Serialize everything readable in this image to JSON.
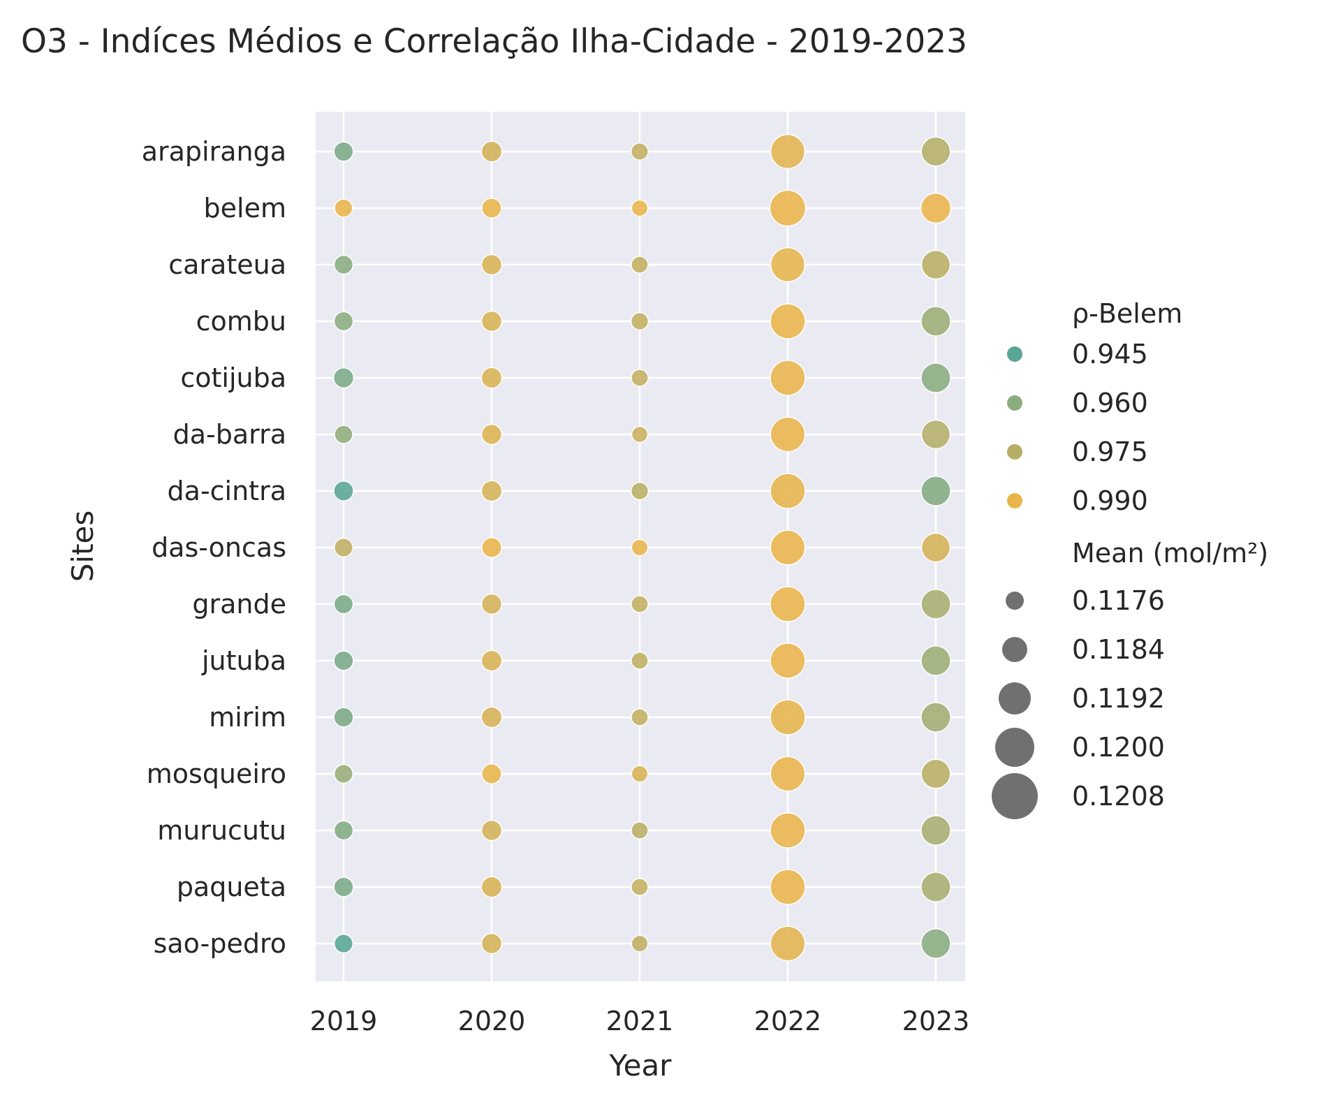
{
  "chart_data": {
    "type": "scatter",
    "title": "O3 - Indíces Médios e Correlação Ilha-Cidade - 2019-2023",
    "xlabel": "Year",
    "ylabel": "Sites",
    "x": [
      "2019",
      "2020",
      "2021",
      "2022",
      "2023"
    ],
    "sites": [
      "arapiranga",
      "belem",
      "carateua",
      "combu",
      "cotijuba",
      "da-barra",
      "da-cintra",
      "das-oncas",
      "grande",
      "jutuba",
      "mirim",
      "mosqueiro",
      "murucutu",
      "paqueta",
      "sao-pedro"
    ],
    "grid": true,
    "color_legend": {
      "title": "ρ-Belem",
      "entries": [
        "0.945",
        "0.960",
        "0.975",
        "0.990"
      ],
      "values": [
        0.945,
        0.96,
        0.975,
        0.99
      ],
      "colors": [
        "#59a596",
        "#8aac7e",
        "#b7ae66",
        "#e9b54a"
      ]
    },
    "size_legend": {
      "title": "Mean (mol/m²)",
      "entries": [
        "0.1176",
        "0.1184",
        "0.1192",
        "0.1200",
        "0.1208"
      ],
      "values": [
        0.1176,
        0.1184,
        0.1192,
        0.12,
        0.1208
      ]
    },
    "legend_placement": "right",
    "points": [
      {
        "site": "arapiranga",
        "year": "2019",
        "rho": 0.955,
        "mean": 0.11785
      },
      {
        "site": "arapiranga",
        "year": "2020",
        "rho": 0.983,
        "mean": 0.11815
      },
      {
        "site": "arapiranga",
        "year": "2021",
        "rho": 0.978,
        "mean": 0.11735
      },
      {
        "site": "arapiranga",
        "year": "2022",
        "rho": 0.988,
        "mean": 0.1214
      },
      {
        "site": "arapiranga",
        "year": "2023",
        "rho": 0.974,
        "mean": 0.1202
      },
      {
        "site": "belem",
        "year": "2019",
        "rho": 0.998,
        "mean": 0.11755
      },
      {
        "site": "belem",
        "year": "2020",
        "rho": 0.998,
        "mean": 0.11795
      },
      {
        "site": "belem",
        "year": "2021",
        "rho": 0.998,
        "mean": 0.11715
      },
      {
        "site": "belem",
        "year": "2022",
        "rho": 0.998,
        "mean": 0.1218
      },
      {
        "site": "belem",
        "year": "2023",
        "rho": 0.998,
        "mean": 0.1204
      },
      {
        "site": "carateua",
        "year": "2019",
        "rho": 0.96,
        "mean": 0.11775
      },
      {
        "site": "carateua",
        "year": "2020",
        "rho": 0.985,
        "mean": 0.1181
      },
      {
        "site": "carateua",
        "year": "2021",
        "rho": 0.978,
        "mean": 0.1173
      },
      {
        "site": "carateua",
        "year": "2022",
        "rho": 0.989,
        "mean": 0.1214
      },
      {
        "site": "carateua",
        "year": "2023",
        "rho": 0.976,
        "mean": 0.1201
      },
      {
        "site": "combu",
        "year": "2019",
        "rho": 0.96,
        "mean": 0.1178
      },
      {
        "site": "combu",
        "year": "2020",
        "rho": 0.985,
        "mean": 0.1181
      },
      {
        "site": "combu",
        "year": "2021",
        "rho": 0.978,
        "mean": 0.1174
      },
      {
        "site": "combu",
        "year": "2022",
        "rho": 0.99,
        "mean": 0.1216
      },
      {
        "site": "combu",
        "year": "2023",
        "rho": 0.966,
        "mean": 0.1203
      },
      {
        "site": "cotijuba",
        "year": "2019",
        "rho": 0.955,
        "mean": 0.11805
      },
      {
        "site": "cotijuba",
        "year": "2020",
        "rho": 0.985,
        "mean": 0.11815
      },
      {
        "site": "cotijuba",
        "year": "2021",
        "rho": 0.978,
        "mean": 0.1173
      },
      {
        "site": "cotijuba",
        "year": "2022",
        "rho": 0.99,
        "mean": 0.1216
      },
      {
        "site": "cotijuba",
        "year": "2023",
        "rho": 0.96,
        "mean": 0.1203
      },
      {
        "site": "da-barra",
        "year": "2019",
        "rho": 0.962,
        "mean": 0.1176
      },
      {
        "site": "da-barra",
        "year": "2020",
        "rho": 0.986,
        "mean": 0.11805
      },
      {
        "site": "da-barra",
        "year": "2021",
        "rho": 0.98,
        "mean": 0.1171
      },
      {
        "site": "da-barra",
        "year": "2022",
        "rho": 0.99,
        "mean": 0.1215
      },
      {
        "site": "da-barra",
        "year": "2023",
        "rho": 0.974,
        "mean": 0.1201
      },
      {
        "site": "da-cintra",
        "year": "2019",
        "rho": 0.944,
        "mean": 0.11795
      },
      {
        "site": "da-cintra",
        "year": "2020",
        "rho": 0.984,
        "mean": 0.11815
      },
      {
        "site": "da-cintra",
        "year": "2021",
        "rho": 0.976,
        "mean": 0.1174
      },
      {
        "site": "da-cintra",
        "year": "2022",
        "rho": 0.989,
        "mean": 0.1216
      },
      {
        "site": "da-cintra",
        "year": "2023",
        "rho": 0.958,
        "mean": 0.1203
      },
      {
        "site": "das-oncas",
        "year": "2019",
        "rho": 0.977,
        "mean": 0.1177
      },
      {
        "site": "das-oncas",
        "year": "2020",
        "rho": 0.994,
        "mean": 0.118
      },
      {
        "site": "das-oncas",
        "year": "2021",
        "rho": 0.994,
        "mean": 0.1172
      },
      {
        "site": "das-oncas",
        "year": "2022",
        "rho": 0.996,
        "mean": 0.1215
      },
      {
        "site": "das-oncas",
        "year": "2023",
        "rho": 0.984,
        "mean": 0.1201
      },
      {
        "site": "grande",
        "year": "2019",
        "rho": 0.955,
        "mean": 0.1178
      },
      {
        "site": "grande",
        "year": "2020",
        "rho": 0.984,
        "mean": 0.1181
      },
      {
        "site": "grande",
        "year": "2021",
        "rho": 0.978,
        "mean": 0.1173
      },
      {
        "site": "grande",
        "year": "2022",
        "rho": 0.99,
        "mean": 0.1216
      },
      {
        "site": "grande",
        "year": "2023",
        "rho": 0.97,
        "mean": 0.1203
      },
      {
        "site": "jutuba",
        "year": "2019",
        "rho": 0.955,
        "mean": 0.1179
      },
      {
        "site": "jutuba",
        "year": "2020",
        "rho": 0.985,
        "mean": 0.11815
      },
      {
        "site": "jutuba",
        "year": "2021",
        "rho": 0.977,
        "mean": 0.1173
      },
      {
        "site": "jutuba",
        "year": "2022",
        "rho": 0.99,
        "mean": 0.1216
      },
      {
        "site": "jutuba",
        "year": "2023",
        "rho": 0.966,
        "mean": 0.1203
      },
      {
        "site": "mirim",
        "year": "2019",
        "rho": 0.955,
        "mean": 0.1179
      },
      {
        "site": "mirim",
        "year": "2020",
        "rho": 0.984,
        "mean": 0.11815
      },
      {
        "site": "mirim",
        "year": "2021",
        "rho": 0.978,
        "mean": 0.1173
      },
      {
        "site": "mirim",
        "year": "2022",
        "rho": 0.989,
        "mean": 0.1216
      },
      {
        "site": "mirim",
        "year": "2023",
        "rho": 0.968,
        "mean": 0.1203
      },
      {
        "site": "mosqueiro",
        "year": "2019",
        "rho": 0.965,
        "mean": 0.1177
      },
      {
        "site": "mosqueiro",
        "year": "2020",
        "rho": 0.99,
        "mean": 0.118
      },
      {
        "site": "mosqueiro",
        "year": "2021",
        "rho": 0.985,
        "mean": 0.1172
      },
      {
        "site": "mosqueiro",
        "year": "2022",
        "rho": 0.993,
        "mean": 0.1215
      },
      {
        "site": "mosqueiro",
        "year": "2023",
        "rho": 0.976,
        "mean": 0.1202
      },
      {
        "site": "murucutu",
        "year": "2019",
        "rho": 0.957,
        "mean": 0.1178
      },
      {
        "site": "murucutu",
        "year": "2020",
        "rho": 0.983,
        "mean": 0.1181
      },
      {
        "site": "murucutu",
        "year": "2021",
        "rho": 0.976,
        "mean": 0.1173
      },
      {
        "site": "murucutu",
        "year": "2022",
        "rho": 0.99,
        "mean": 0.1216
      },
      {
        "site": "murucutu",
        "year": "2023",
        "rho": 0.97,
        "mean": 0.1203
      },
      {
        "site": "paqueta",
        "year": "2019",
        "rho": 0.955,
        "mean": 0.1179
      },
      {
        "site": "paqueta",
        "year": "2020",
        "rho": 0.985,
        "mean": 0.11815
      },
      {
        "site": "paqueta",
        "year": "2021",
        "rho": 0.979,
        "mean": 0.1173
      },
      {
        "site": "paqueta",
        "year": "2022",
        "rho": 0.99,
        "mean": 0.1216
      },
      {
        "site": "paqueta",
        "year": "2023",
        "rho": 0.97,
        "mean": 0.1203
      },
      {
        "site": "sao-pedro",
        "year": "2019",
        "rho": 0.943,
        "mean": 0.1177
      },
      {
        "site": "sao-pedro",
        "year": "2020",
        "rho": 0.984,
        "mean": 0.1181
      },
      {
        "site": "sao-pedro",
        "year": "2021",
        "rho": 0.977,
        "mean": 0.1172
      },
      {
        "site": "sao-pedro",
        "year": "2022",
        "rho": 0.988,
        "mean": 0.1215
      },
      {
        "site": "sao-pedro",
        "year": "2023",
        "rho": 0.96,
        "mean": 0.1203
      }
    ]
  }
}
